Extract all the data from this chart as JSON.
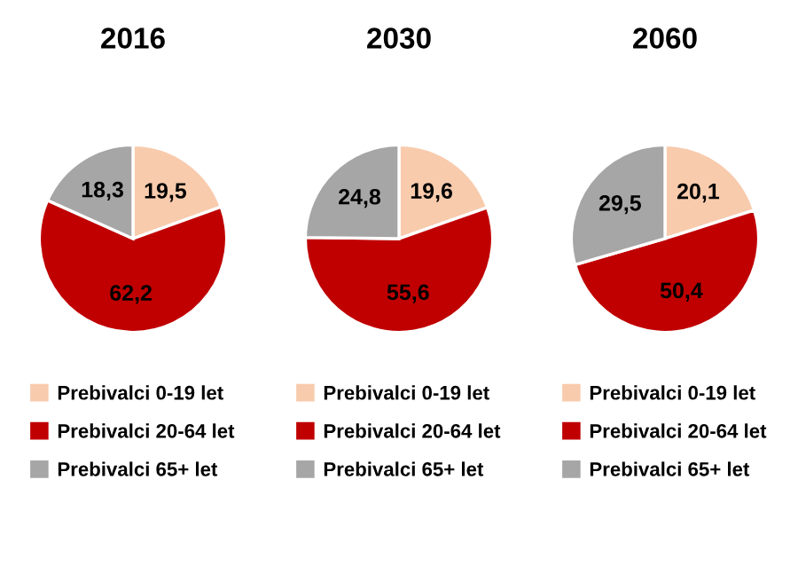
{
  "chart_data": [
    {
      "type": "pie",
      "title": "2016",
      "categories": [
        "Prebivalci 0-19 let",
        "Prebivalci 20-64 let",
        "Prebivalci 65+ let"
      ],
      "values": [
        19.5,
        62.2,
        18.3
      ],
      "colors": [
        "#f8cbad",
        "#c00000",
        "#a6a6a6"
      ],
      "value_labels": [
        "19,5",
        "62,2",
        "18,3"
      ],
      "legend": "bottom"
    },
    {
      "type": "pie",
      "title": "2030",
      "categories": [
        "Prebivalci 0-19 let",
        "Prebivalci 20-64 let",
        "Prebivalci 65+ let"
      ],
      "values": [
        19.6,
        55.6,
        24.8
      ],
      "colors": [
        "#f8cbad",
        "#c00000",
        "#a6a6a6"
      ],
      "value_labels": [
        "19,6",
        "55,6",
        "24,8"
      ],
      "legend": "bottom"
    },
    {
      "type": "pie",
      "title": "2060",
      "categories": [
        "Prebivalci 0-19 let",
        "Prebivalci 20-64 let",
        "Prebivalci 65+ let"
      ],
      "values": [
        20.1,
        50.4,
        29.5
      ],
      "colors": [
        "#f8cbad",
        "#c00000",
        "#a6a6a6"
      ],
      "value_labels": [
        "20,1",
        "50,4",
        "29,5"
      ],
      "legend": "bottom"
    }
  ]
}
